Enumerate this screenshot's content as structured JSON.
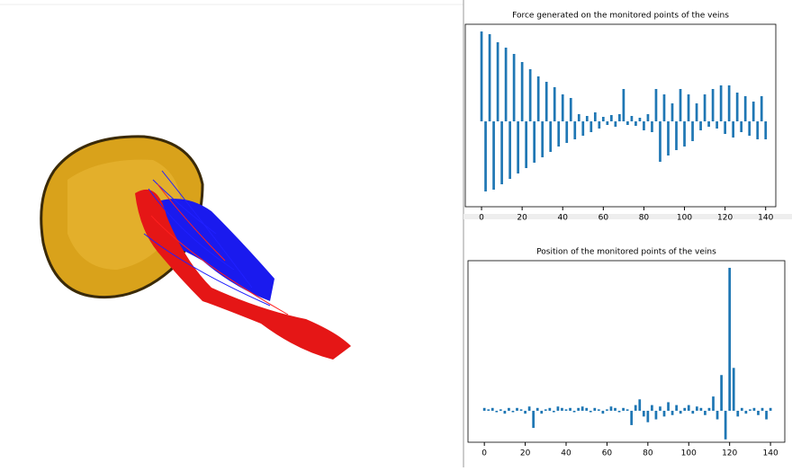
{
  "chart_data": [
    {
      "type": "bar",
      "title": "Force generated on the monitored points of the veins",
      "color": "#1f77b4",
      "x": [
        0,
        2,
        4,
        6,
        8,
        10,
        12,
        14,
        16,
        18,
        20,
        22,
        24,
        26,
        28,
        30,
        32,
        34,
        36,
        38,
        40,
        42,
        44,
        46,
        48,
        50,
        52,
        54,
        56,
        58,
        60,
        62,
        64,
        66,
        68,
        70,
        72,
        74,
        76,
        78,
        80,
        82,
        84,
        86,
        88,
        90,
        92,
        94,
        96,
        98,
        100,
        102,
        104,
        106,
        108,
        110,
        112,
        114,
        116,
        118,
        120,
        122,
        124,
        126,
        128,
        130,
        132,
        134,
        136,
        138,
        140
      ],
      "values": [
        1.0,
        -0.78,
        0.97,
        -0.76,
        0.88,
        -0.7,
        0.82,
        -0.64,
        0.75,
        -0.58,
        0.66,
        -0.52,
        0.58,
        -0.46,
        0.5,
        -0.4,
        0.44,
        -0.34,
        0.38,
        -0.28,
        0.3,
        -0.24,
        0.26,
        -0.2,
        0.08,
        -0.16,
        0.06,
        -0.12,
        0.1,
        -0.08,
        0.05,
        -0.04,
        0.07,
        -0.06,
        0.08,
        0.36,
        -0.04,
        0.06,
        -0.05,
        0.04,
        -0.1,
        0.08,
        -0.12,
        0.36,
        -0.45,
        0.3,
        -0.38,
        0.2,
        -0.32,
        0.36,
        -0.28,
        0.3,
        -0.22,
        0.2,
        -0.1,
        0.3,
        -0.06,
        0.36,
        -0.08,
        0.4,
        -0.14,
        0.4,
        -0.18,
        0.32,
        -0.12,
        0.28,
        -0.16,
        0.22,
        -0.2,
        0.28,
        -0.2
      ],
      "xlim": [
        -8,
        145
      ],
      "ylim": [
        -0.95,
        1.08
      ],
      "xticks": [
        0,
        20,
        40,
        60,
        80,
        100,
        120,
        140
      ]
    },
    {
      "type": "bar",
      "title": "Position of the monitored points of the veins",
      "color": "#1f77b4",
      "x": [
        0,
        2,
        4,
        6,
        8,
        10,
        12,
        14,
        16,
        18,
        20,
        22,
        24,
        26,
        28,
        30,
        32,
        34,
        36,
        38,
        40,
        42,
        44,
        46,
        48,
        50,
        52,
        54,
        56,
        58,
        60,
        62,
        64,
        66,
        68,
        70,
        72,
        74,
        76,
        78,
        80,
        82,
        84,
        86,
        88,
        90,
        92,
        94,
        96,
        98,
        100,
        102,
        104,
        106,
        108,
        110,
        112,
        114,
        116,
        118,
        120,
        122,
        124,
        126,
        128,
        130,
        132,
        134,
        136,
        138,
        140
      ],
      "values": [
        0.02,
        0.01,
        0.02,
        -0.01,
        0.01,
        -0.02,
        0.02,
        -0.01,
        0.02,
        0.01,
        -0.02,
        0.03,
        -0.12,
        0.02,
        -0.02,
        0.01,
        0.02,
        -0.01,
        0.03,
        0.02,
        0.01,
        0.02,
        -0.01,
        0.02,
        0.03,
        0.02,
        -0.01,
        0.02,
        0.01,
        -0.02,
        0.01,
        0.03,
        0.02,
        -0.01,
        0.02,
        0.01,
        -0.1,
        0.04,
        0.08,
        -0.04,
        -0.08,
        0.04,
        -0.06,
        0.03,
        -0.04,
        0.06,
        -0.03,
        0.04,
        -0.02,
        0.02,
        0.04,
        -0.02,
        0.03,
        0.02,
        -0.03,
        0.02,
        0.1,
        -0.06,
        0.25,
        -0.2,
        1.0,
        0.3,
        -0.04,
        0.02,
        -0.02,
        0.01,
        0.02,
        -0.03,
        0.02,
        -0.06,
        0.02
      ],
      "xlim": [
        -8,
        147
      ],
      "ylim": [
        -0.22,
        1.05
      ],
      "xticks": [
        0,
        20,
        40,
        60,
        80,
        100,
        120,
        140
      ]
    }
  ]
}
